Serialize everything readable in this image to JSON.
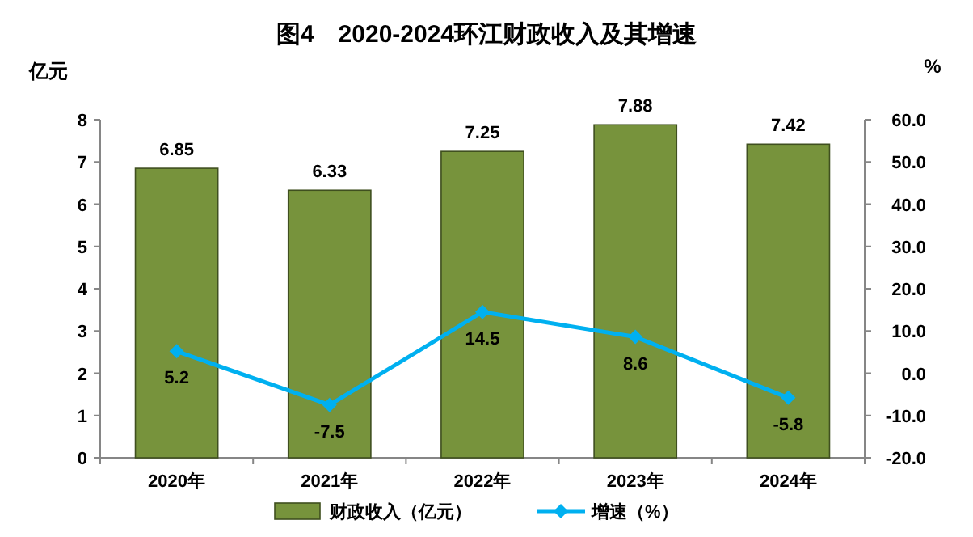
{
  "chart_data": {
    "type": "bar",
    "title": "图4　2020-2024环江财政收入及其增速",
    "ylabel": "亿元",
    "y2label": "%",
    "categories": [
      "2020年",
      "2021年",
      "2022年",
      "2023年",
      "2024年"
    ],
    "series": [
      {
        "name": "财政收入（亿元）",
        "color": "#77933c",
        "values": [
          6.85,
          6.33,
          7.25,
          7.88,
          7.42
        ]
      },
      {
        "name": "增速（%）",
        "type": "line",
        "axis": "y2",
        "color": "#00b0f0",
        "marker": "diamond",
        "values": [
          5.2,
          -7.5,
          14.5,
          8.6,
          -5.8
        ]
      }
    ],
    "ylim": [
      0,
      8
    ],
    "yticks": [
      0,
      1,
      2,
      3,
      4,
      5,
      6,
      7,
      8
    ],
    "y2lim": [
      -20,
      60
    ],
    "y2ticks": [
      {
        "value": 60,
        "label": "60.0"
      },
      {
        "value": 50,
        "label": "50.0"
      },
      {
        "value": 40,
        "label": "40.0"
      },
      {
        "value": 30,
        "label": "30.0"
      },
      {
        "value": 20,
        "label": "20.0"
      },
      {
        "value": 10,
        "label": "10.0"
      },
      {
        "value": 0,
        "label": "0.0"
      },
      {
        "value": -10,
        "label": "-10.0"
      },
      {
        "value": -20,
        "label": "-20.0"
      }
    ],
    "data_labels": true,
    "legend": "bottom",
    "grid": false
  }
}
